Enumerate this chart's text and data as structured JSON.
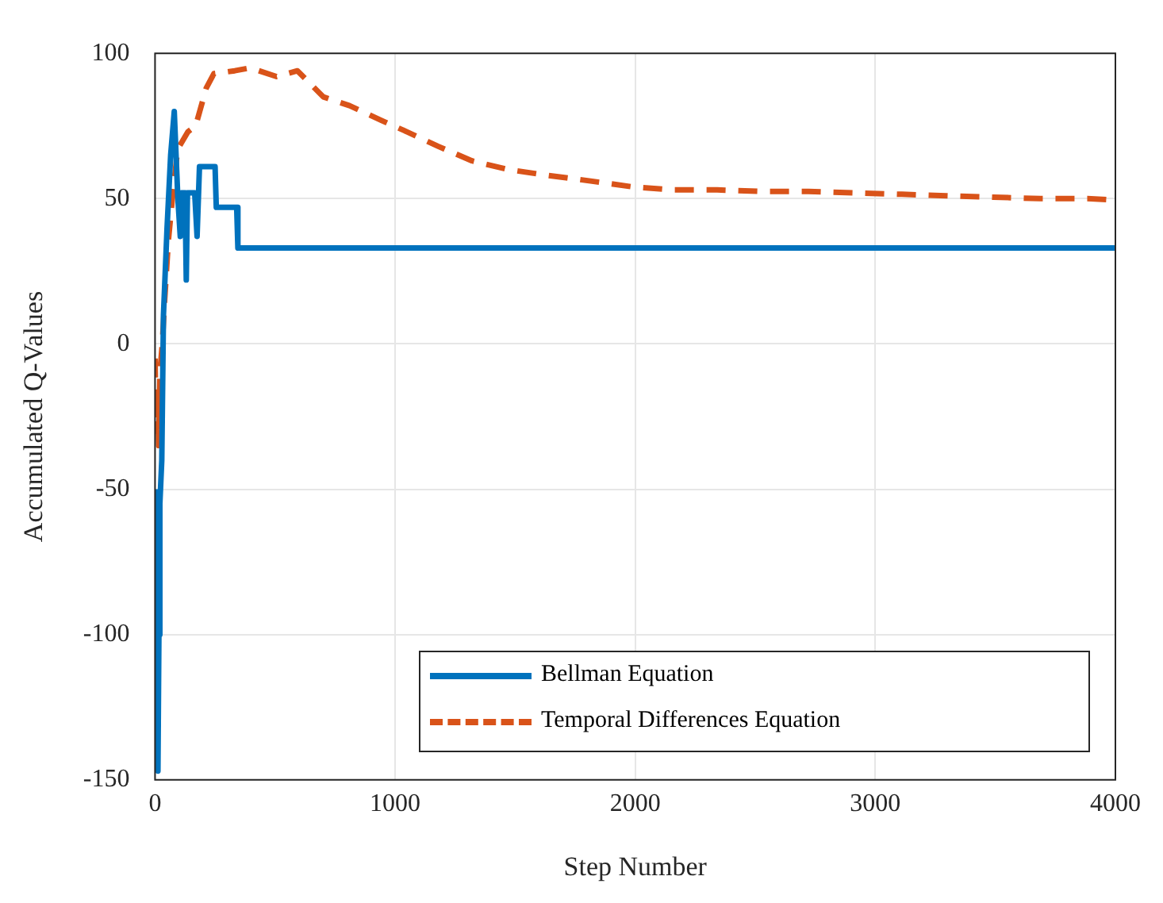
{
  "chart_data": {
    "type": "line",
    "xlabel": "Step Number",
    "ylabel": "Accumulated Q-Values",
    "xlim": [
      0,
      4000
    ],
    "xticks": [
      0,
      1000,
      2000,
      3000,
      4000
    ],
    "ylim": [
      -150,
      100
    ],
    "yticks": [
      -150,
      -100,
      -50,
      0,
      50,
      100
    ],
    "grid": true,
    "legend": "bottom right",
    "marker": "none",
    "series": [
      {
        "name": "Bellman Equation",
        "color": "#0072bd",
        "line_style": "solid",
        "x": [
          0,
          5,
          8,
          12,
          16,
          20,
          28,
          35,
          50,
          65,
          80,
          95,
          105,
          110,
          125,
          130,
          135,
          165,
          175,
          185,
          250,
          255,
          340,
          345,
          4000
        ],
        "values": [
          -50,
          -100,
          -55,
          -147,
          -100,
          -55,
          -40,
          10,
          40,
          65,
          80,
          50,
          37,
          52,
          52,
          22,
          52,
          52,
          37,
          61,
          61,
          47,
          47,
          33,
          33
        ]
      },
      {
        "name": "Temporal Differences Equation",
        "color": "#d95319",
        "line_style": "dashed",
        "x": [
          0,
          5,
          10,
          15,
          20,
          30,
          40,
          55,
          72,
          94,
          137,
          169,
          213,
          245,
          332,
          397,
          506,
          593,
          701,
          810,
          940,
          1049,
          1179,
          1320,
          1472,
          1635,
          1820,
          1993,
          2156,
          2341,
          2525,
          2721,
          2916,
          3111,
          3296,
          3492,
          3687,
          3883,
          4000
        ],
        "values": [
          -5,
          -30,
          -15,
          -35,
          -10,
          0,
          15,
          35,
          50,
          67,
          73,
          75,
          88,
          93,
          94,
          95,
          92,
          94,
          85,
          82,
          77,
          73,
          68,
          63,
          60,
          58,
          56,
          54,
          53,
          53,
          52.5,
          52.5,
          52,
          51.5,
          51,
          50.5,
          50,
          50,
          49.5
        ]
      }
    ]
  }
}
